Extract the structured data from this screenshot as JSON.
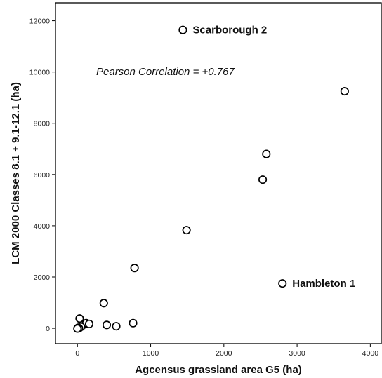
{
  "chart_data": {
    "type": "scatter",
    "title": "",
    "xlabel": "Agcensus grassland area G5 (ha)",
    "ylabel": "LCM 2000 Classes 8.1 + 9.1-12.1 (ha)",
    "xlim": [
      -300,
      4150
    ],
    "ylim": [
      -600,
      12700
    ],
    "x_ticks": [
      0,
      1000,
      2000,
      3000,
      4000
    ],
    "y_ticks": [
      0,
      2000,
      4000,
      6000,
      8000,
      10000,
      12000
    ],
    "x_tick_labels": [
      "0",
      "1000",
      "2000",
      "3000",
      "4000"
    ],
    "y_tick_labels": [
      "0",
      "2000",
      "4000",
      "6000",
      "8000",
      "10000",
      "12000"
    ],
    "grid": false,
    "annotations": {
      "correlation": "Pearson Correlation = +0.767"
    },
    "point_labels": [
      "Scarborough 2",
      "Hambleton 1"
    ],
    "points": [
      {
        "x": 1440,
        "y": 11640,
        "label": "Scarborough 2"
      },
      {
        "x": 3650,
        "y": 9250
      },
      {
        "x": 2580,
        "y": 6800
      },
      {
        "x": 2530,
        "y": 5800
      },
      {
        "x": 1490,
        "y": 3830
      },
      {
        "x": 780,
        "y": 2350
      },
      {
        "x": 2800,
        "y": 1750,
        "label": "Hambleton 1"
      },
      {
        "x": 360,
        "y": 980
      },
      {
        "x": 30,
        "y": 380
      },
      {
        "x": 400,
        "y": 130
      },
      {
        "x": 530,
        "y": 80
      },
      {
        "x": 760,
        "y": 200
      },
      {
        "x": 90,
        "y": 150
      },
      {
        "x": 120,
        "y": 200
      },
      {
        "x": 160,
        "y": 170
      },
      {
        "x": 50,
        "y": 60
      },
      {
        "x": 10,
        "y": 20
      },
      {
        "x": 20,
        "y": 0
      },
      {
        "x": 0,
        "y": -10
      }
    ]
  }
}
